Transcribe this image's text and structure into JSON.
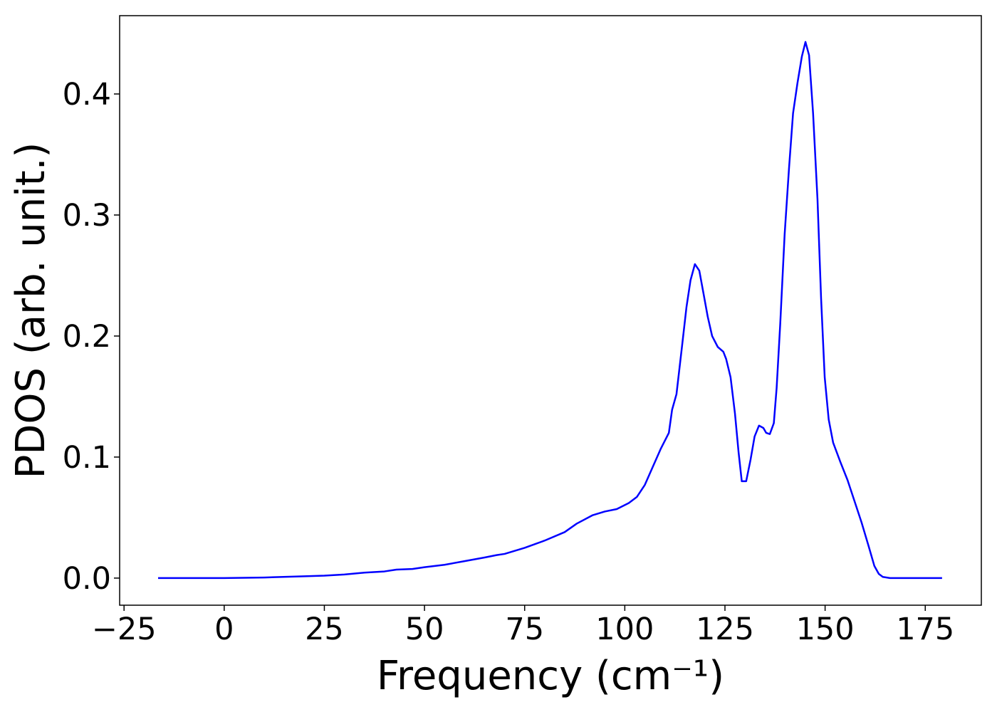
{
  "chart_data": {
    "type": "line",
    "xlabel": "Frequency (cm⁻¹)",
    "ylabel": "PDOS (arb. unit.)",
    "color": "#0000ff",
    "xlim": [
      -26.1,
      189.0
    ],
    "ylim": [
      -0.0224,
      0.4647
    ],
    "xticks": [
      {
        "value": -25,
        "label": "−25"
      },
      0,
      25,
      50,
      75,
      100,
      125,
      150,
      175
    ],
    "yticks": [
      {
        "value": 0,
        "label": "0.0"
      },
      0.1,
      0.2,
      0.3,
      0.4
    ],
    "x": [
      -16.5,
      0,
      10,
      20,
      25,
      30,
      35,
      40,
      43,
      47,
      50,
      55,
      60,
      65,
      68,
      70,
      75,
      80,
      85,
      88,
      92,
      95,
      98,
      101,
      103,
      105,
      107,
      109,
      111,
      111.8,
      112.9,
      114.3,
      115.4,
      116.4,
      117.5,
      118.6,
      119.6,
      120.7,
      121.8,
      123.2,
      124.6,
      125.3,
      126.4,
      127.5,
      128.4,
      129.2,
      130.3,
      131.4,
      132.4,
      133.5,
      134.6,
      135.3,
      136.2,
      137.2,
      137.9,
      138.8,
      139.9,
      141,
      142,
      143.1,
      144.2,
      145.1,
      146,
      147,
      148.1,
      149,
      149.9,
      150.9,
      152,
      153.8,
      155.6,
      157.3,
      159.1,
      160.9,
      162.3,
      163.4,
      164.4,
      166.2,
      179.2
    ],
    "values": [
      0,
      0,
      0.0005,
      0.0015,
      0.002,
      0.003,
      0.0045,
      0.0055,
      0.007,
      0.0075,
      0.009,
      0.011,
      0.014,
      0.017,
      0.019,
      0.02,
      0.025,
      0.031,
      0.038,
      0.045,
      0.052,
      0.055,
      0.057,
      0.062,
      0.067,
      0.077,
      0.092,
      0.107,
      0.12,
      0.139,
      0.152,
      0.192,
      0.224,
      0.246,
      0.2594,
      0.254,
      0.236,
      0.216,
      0.2,
      0.191,
      0.187,
      0.181,
      0.166,
      0.136,
      0.104,
      0.08,
      0.08,
      0.098,
      0.117,
      0.126,
      0.124,
      0.12,
      0.119,
      0.128,
      0.157,
      0.21,
      0.284,
      0.339,
      0.384,
      0.409,
      0.431,
      0.443,
      0.432,
      0.384,
      0.313,
      0.231,
      0.166,
      0.131,
      0.112,
      0.096,
      0.081,
      0.064,
      0.046,
      0.026,
      0.01,
      0.0035,
      0.001,
      0,
      0
    ]
  }
}
